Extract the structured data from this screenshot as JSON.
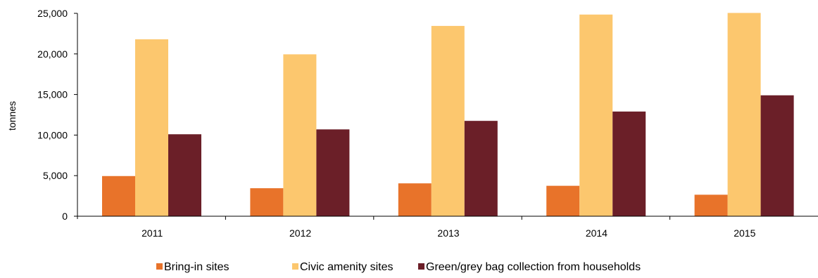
{
  "chart_data": {
    "type": "bar",
    "title": "",
    "xlabel": "",
    "ylabel": "tonnes",
    "categories": [
      "2011",
      "2012",
      "2013",
      "2014",
      "2015"
    ],
    "ylim": [
      0,
      25000
    ],
    "yticks": [
      0,
      5000,
      10000,
      15000,
      20000,
      25000
    ],
    "ytick_labels": [
      "0",
      "5,000",
      "10,000",
      "15,000",
      "20,000",
      "25,000"
    ],
    "grid": false,
    "legend_position": "bottom",
    "series": [
      {
        "name": "Bring-in sites",
        "color": "#E8732A",
        "values": [
          4950,
          3450,
          4050,
          3750,
          2650
        ]
      },
      {
        "name": "Civic amenity sites",
        "color": "#FCC76E",
        "values": [
          21800,
          19950,
          23450,
          24850,
          25050
        ]
      },
      {
        "name": "Green/grey bag collection from households",
        "color": "#6B1F28",
        "values": [
          10100,
          10700,
          11750,
          12900,
          14900
        ]
      }
    ]
  }
}
